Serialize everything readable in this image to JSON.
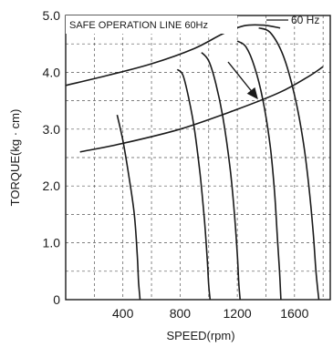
{
  "chart_data": {
    "type": "line",
    "xlabel": "SPEED(rpm)",
    "ylabel": "TORQUE(kg · cm)",
    "xlim": [
      0,
      1850
    ],
    "ylim": [
      0,
      5.0
    ],
    "x_ticks": [
      400,
      800,
      1200,
      1600
    ],
    "y_ticks": [
      {
        "value": 0,
        "label": "0"
      },
      {
        "value": 1.0,
        "label": "1.0"
      },
      {
        "value": 2.0,
        "label": "2.0"
      },
      {
        "value": 3.0,
        "label": "3.0"
      },
      {
        "value": 4.0,
        "label": "4.0"
      },
      {
        "value": 5.0,
        "label": "5.0"
      }
    ],
    "grid": true,
    "annotations": [
      {
        "text": "SAFE OPERATION LINE 60Hz"
      }
    ],
    "legend": [
      {
        "label": "60 Hz"
      }
    ],
    "safe_line": {
      "x": [
        0,
        300,
        600,
        900,
        1100,
        1250,
        1380,
        1500
      ],
      "y": [
        3.77,
        3.95,
        4.15,
        4.42,
        4.68,
        4.82,
        4.83,
        4.78
      ]
    },
    "load_line": {
      "x": [
        100,
        400,
        800,
        1200,
        1500,
        1700,
        1800
      ],
      "y": [
        2.6,
        2.75,
        3.0,
        3.35,
        3.65,
        3.93,
        4.1
      ]
    },
    "speed_torque_curves": [
      {
        "x": [
          360,
          400,
          440,
          480,
          500,
          510,
          520
        ],
        "y": [
          3.25,
          2.8,
          2.2,
          1.5,
          0.8,
          0.3,
          0
        ]
      },
      {
        "x": [
          780,
          820,
          860,
          900,
          940,
          970,
          990,
          1000,
          1010
        ],
        "y": [
          4.05,
          3.95,
          3.55,
          3.0,
          2.2,
          1.4,
          0.7,
          0.25,
          0
        ]
      },
      {
        "x": [
          950,
          1000,
          1050,
          1100,
          1150,
          1180,
          1200,
          1210,
          1220
        ],
        "y": [
          4.35,
          4.2,
          3.8,
          3.2,
          2.3,
          1.5,
          0.8,
          0.3,
          0
        ]
      },
      {
        "x": [
          1200,
          1260,
          1320,
          1380,
          1430,
          1460,
          1480,
          1495,
          1505
        ],
        "y": [
          4.55,
          4.45,
          4.1,
          3.5,
          2.7,
          1.9,
          1.1,
          0.5,
          0
        ]
      },
      {
        "x": [
          1350,
          1430,
          1520,
          1600,
          1660,
          1700,
          1730,
          1750,
          1770
        ],
        "y": [
          4.78,
          4.7,
          4.3,
          3.6,
          2.8,
          2.0,
          1.2,
          0.5,
          0
        ]
      }
    ]
  }
}
